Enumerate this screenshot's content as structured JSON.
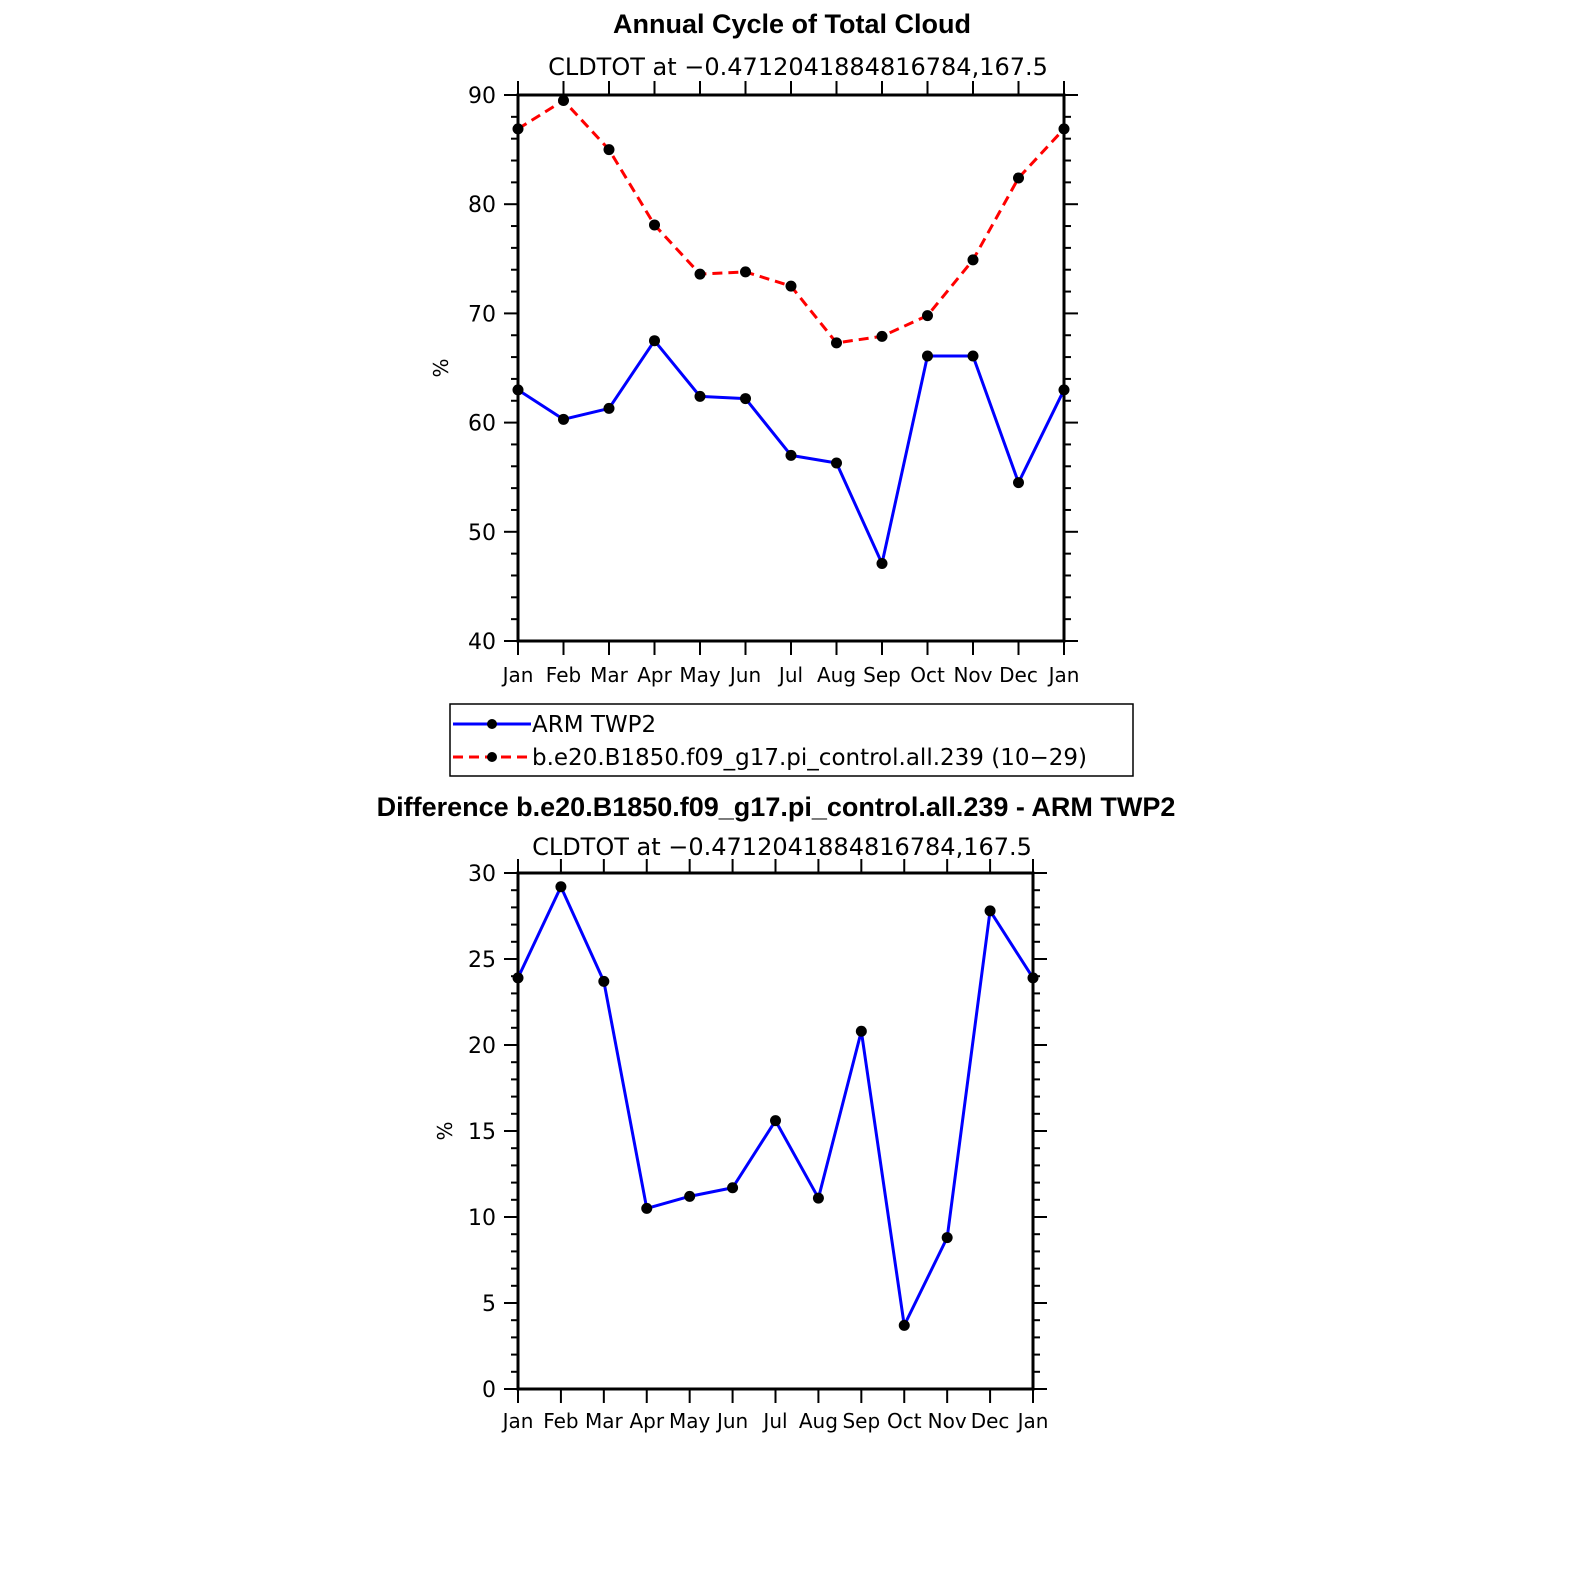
{
  "chart_data": [
    {
      "type": "line",
      "title": "Annual Cycle of Total Cloud",
      "subtitle": "CLDTOT at −0.4712041884816784,167.5",
      "ylabel": "%",
      "ylim": [
        40,
        90
      ],
      "yticks": [
        40,
        50,
        60,
        70,
        80,
        90
      ],
      "categories": [
        "Jan",
        "Feb",
        "Mar",
        "Apr",
        "May",
        "Jun",
        "Jul",
        "Aug",
        "Sep",
        "Oct",
        "Nov",
        "Dec",
        "Jan"
      ],
      "series": [
        {
          "name": "ARM TWP2",
          "color": "#0000ff",
          "dash": "solid",
          "values": [
            63.0,
            60.3,
            61.3,
            67.5,
            62.4,
            62.2,
            57.0,
            56.3,
            47.1,
            66.1,
            66.1,
            54.5,
            63.0
          ]
        },
        {
          "name": "b.e20.B1850.f09_g17.pi_control.all.239 (10−29)",
          "color": "#ff0000",
          "dash": "dashed",
          "values": [
            86.9,
            89.5,
            85.0,
            78.1,
            73.6,
            73.8,
            72.5,
            67.3,
            67.9,
            69.8,
            74.9,
            82.4,
            86.9
          ]
        }
      ],
      "legend": {
        "position": "below",
        "entries": [
          "ARM TWP2",
          "b.e20.B1850.f09_g17.pi_control.all.239 (10−29)"
        ]
      }
    },
    {
      "type": "line",
      "title": "Difference b.e20.B1850.f09_g17.pi_control.all.239 - ARM TWP2",
      "subtitle": "CLDTOT at −0.4712041884816784,167.5",
      "ylabel": "%",
      "ylim": [
        0,
        30
      ],
      "yticks": [
        0,
        5,
        10,
        15,
        20,
        25,
        30
      ],
      "categories": [
        "Jan",
        "Feb",
        "Mar",
        "Apr",
        "May",
        "Jun",
        "Jul",
        "Aug",
        "Sep",
        "Oct",
        "Nov",
        "Dec",
        "Jan"
      ],
      "series": [
        {
          "name": "Difference",
          "color": "#0000ff",
          "dash": "solid",
          "values": [
            23.9,
            29.2,
            23.7,
            10.5,
            11.2,
            11.7,
            15.6,
            11.1,
            20.8,
            3.7,
            8.8,
            27.8,
            23.9
          ]
        }
      ]
    }
  ]
}
